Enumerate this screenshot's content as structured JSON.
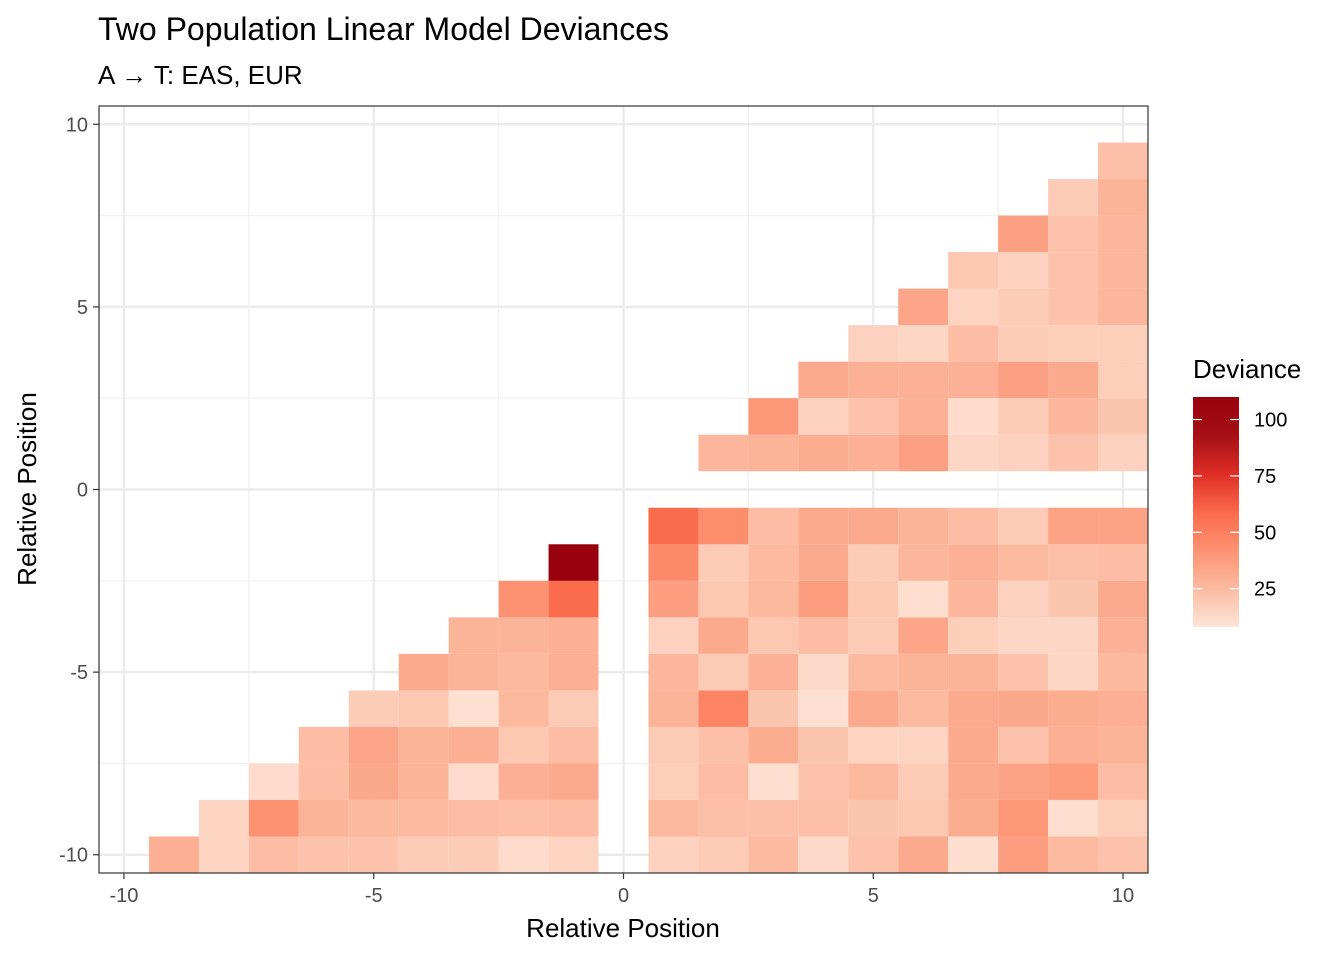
{
  "chart_data": {
    "type": "heatmap",
    "title": "Two Population Linear Model Deviances",
    "subtitle": "A → T: EAS, EUR",
    "xlabel": "Relative Position",
    "ylabel": "Relative Position",
    "xlim": [
      -10.5,
      10.5
    ],
    "ylim": [
      -10.5,
      10.5
    ],
    "x_ticks": [
      -10,
      -5,
      0,
      5,
      10
    ],
    "y_ticks": [
      -10,
      -5,
      0,
      5,
      10
    ],
    "x_tick_labels": [
      "-10",
      "-5",
      "0",
      "5",
      "10"
    ],
    "y_tick_labels": [
      "-10",
      "-5",
      "0",
      "5",
      "10"
    ],
    "grid": true,
    "legend": {
      "title": "Deviance",
      "placement": "right",
      "range": [
        8,
        110
      ],
      "breaks": [
        25,
        50,
        75,
        100
      ],
      "break_labels": [
        "25",
        "50",
        "75",
        "100"
      ],
      "colors": [
        "#fee5d9",
        "#fcbba1",
        "#fc9272",
        "#fb6a4a",
        "#de2d26",
        "#a50f15",
        "#99000d"
      ]
    },
    "regions": {
      "lower_left": {
        "x_from": -9,
        "x_to": -1,
        "rows": {
          "-10": [
            30,
            15,
            24,
            22,
            22,
            18,
            18,
            12,
            15
          ],
          "-9": [
            15,
            42,
            28,
            26,
            25,
            24,
            23,
            24
          ],
          "-8": [
            12,
            24,
            33,
            28,
            12,
            30,
            32
          ],
          "-7": [
            24,
            34,
            28,
            30,
            20,
            24
          ],
          "-6": [
            18,
            20,
            10,
            26,
            19
          ],
          "-5": [
            32,
            28,
            26,
            30
          ],
          "-4": [
            28,
            28,
            30
          ],
          "-3": [
            42,
            58
          ],
          "-2": [
            110
          ]
        }
      },
      "lower_right": {
        "x_from": 1,
        "x_to": 10,
        "rows": {
          "-10": [
            16,
            19,
            25,
            13,
            22,
            32,
            11,
            37,
            25,
            22
          ],
          "-9": [
            26,
            23,
            23,
            23,
            21,
            20,
            31,
            40,
            11,
            17
          ],
          "-8": [
            17,
            24,
            11,
            22,
            26,
            19,
            32,
            35,
            38,
            24
          ],
          "-7": [
            19,
            23,
            31,
            21,
            15,
            15,
            32,
            22,
            30,
            28
          ],
          "-6": [
            28,
            48,
            21,
            10,
            32,
            25,
            32,
            33,
            31,
            30
          ],
          "-5": [
            27,
            19,
            29,
            13,
            25,
            28,
            28,
            22,
            14,
            26
          ],
          "-4": [
            16,
            32,
            20,
            24,
            19,
            34,
            17,
            14,
            14,
            29
          ],
          "-3": [
            37,
            20,
            26,
            37,
            20,
            11,
            27,
            16,
            21,
            32
          ],
          "-2": [
            46,
            19,
            25,
            32,
            19,
            27,
            29,
            25,
            23,
            24
          ],
          "-1": [
            58,
            44,
            24,
            32,
            32,
            28,
            24,
            19,
            35,
            35
          ]
        }
      },
      "upper_right": {
        "x_from": 2,
        "x_to": 10,
        "rows": {
          "1": [
            27,
            28,
            31,
            29,
            36,
            14,
            16,
            22,
            16
          ],
          "2": [
            40,
            16,
            22,
            29,
            12,
            18,
            27,
            21
          ],
          "3": [
            32,
            29,
            29,
            29,
            36,
            32,
            17
          ],
          "4": [
            16,
            14,
            24,
            18,
            17,
            17
          ],
          "5": [
            34,
            15,
            18,
            22,
            27
          ],
          "6": [
            20,
            16,
            22,
            27
          ],
          "7": [
            36,
            22,
            27
          ],
          "8": [
            18,
            28
          ],
          "9": [
            23
          ]
        }
      }
    }
  }
}
